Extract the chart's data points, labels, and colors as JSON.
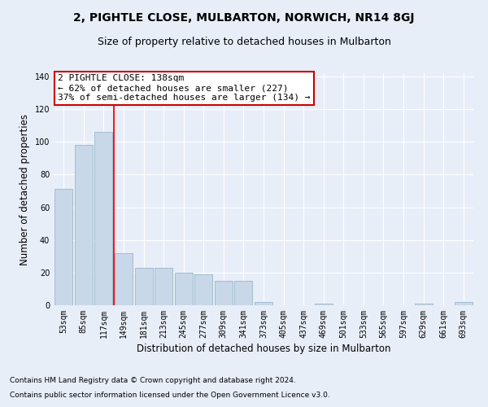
{
  "title": "2, PIGHTLE CLOSE, MULBARTON, NORWICH, NR14 8GJ",
  "subtitle": "Size of property relative to detached houses in Mulbarton",
  "xlabel": "Distribution of detached houses by size in Mulbarton",
  "ylabel": "Number of detached properties",
  "categories": [
    "53sqm",
    "85sqm",
    "117sqm",
    "149sqm",
    "181sqm",
    "213sqm",
    "245sqm",
    "277sqm",
    "309sqm",
    "341sqm",
    "373sqm",
    "405sqm",
    "437sqm",
    "469sqm",
    "501sqm",
    "533sqm",
    "565sqm",
    "597sqm",
    "629sqm",
    "661sqm",
    "693sqm"
  ],
  "values": [
    71,
    98,
    106,
    32,
    23,
    23,
    20,
    19,
    15,
    15,
    2,
    0,
    0,
    1,
    0,
    0,
    0,
    0,
    1,
    0,
    2
  ],
  "bar_color": "#c8d8e8",
  "bar_edgecolor": "#9ab8cc",
  "red_line_x": 2,
  "annotation_text": "2 PIGHTLE CLOSE: 138sqm\n← 62% of detached houses are smaller (227)\n37% of semi-detached houses are larger (134) →",
  "annotation_box_color": "#ffffff",
  "annotation_box_edgecolor": "#cc0000",
  "ylim": [
    0,
    142
  ],
  "yticks": [
    0,
    20,
    40,
    60,
    80,
    100,
    120,
    140
  ],
  "bg_color": "#e8eef8",
  "plot_bg_color": "#e8eef8",
  "grid_color": "#ffffff",
  "footer_line1": "Contains HM Land Registry data © Crown copyright and database right 2024.",
  "footer_line2": "Contains public sector information licensed under the Open Government Licence v3.0.",
  "title_fontsize": 10,
  "subtitle_fontsize": 9,
  "axis_label_fontsize": 8.5,
  "tick_fontsize": 7,
  "annotation_fontsize": 8,
  "footer_fontsize": 6.5
}
